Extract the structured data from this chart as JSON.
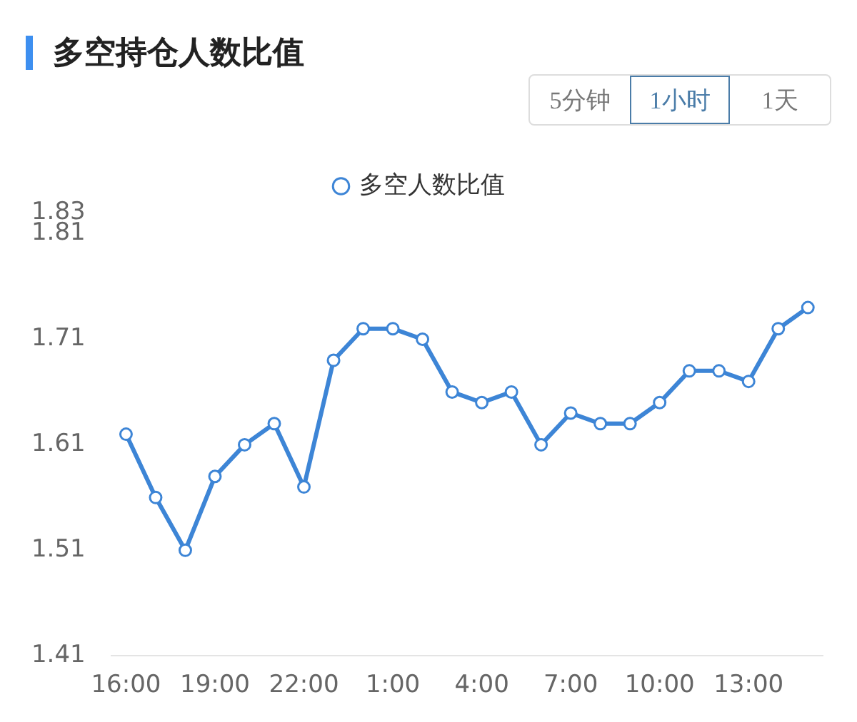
{
  "chart_data": {
    "type": "line",
    "title": "多空持仓人数比值",
    "annotations": [
      "5分钟",
      "1小时",
      "1天"
    ],
    "categories": [
      "16:00",
      null,
      null,
      "19:00",
      null,
      null,
      "22:00",
      null,
      null,
      "1:00",
      null,
      null,
      "4:00",
      null,
      null,
      "7:00",
      null,
      null,
      "10:00",
      null,
      null,
      "13:00",
      null,
      null
    ],
    "series": [
      {
        "name": "多空人数比值",
        "color": "#3d85d6",
        "values": [
          1.62,
          1.56,
          1.51,
          1.58,
          1.61,
          1.63,
          1.57,
          1.69,
          1.72,
          1.72,
          1.71,
          1.66,
          1.65,
          1.66,
          1.61,
          1.64,
          1.63,
          1.63,
          1.65,
          1.68,
          1.68,
          1.67,
          1.72,
          1.74
        ]
      }
    ],
    "ylim": [
      1.41,
      1.83
    ],
    "yticks": [
      1.41,
      1.51,
      1.61,
      1.71,
      1.81,
      1.83
    ],
    "grid": false,
    "legend": "top",
    "marker": "circle",
    "line_style": "solid"
  }
}
